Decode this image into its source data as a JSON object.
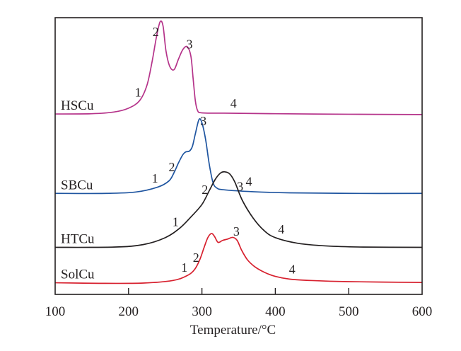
{
  "chart_data": {
    "type": "line",
    "title": "",
    "xlabel": "Temperature/°C",
    "ylabel": "",
    "xlim": [
      100,
      600
    ],
    "ylim": [
      0,
      100
    ],
    "xticks": [
      "100",
      "200",
      "300",
      "400",
      "500",
      "600"
    ],
    "xtick_values": [
      100,
      200,
      300,
      400,
      500,
      600
    ],
    "grid": false,
    "legend": "inline labels at left of each curve",
    "y_units": "arbitrary (curves vertically offset)",
    "series": [
      {
        "name": "HSCu",
        "color": "#b5338a",
        "x": [
          100,
          150,
          180,
          200,
          215,
          225,
          232,
          238,
          243,
          247,
          251,
          256,
          262,
          268,
          274,
          280,
          285,
          288,
          291,
          294,
          300,
          330,
          400,
          500,
          600
        ],
        "y": [
          65.2,
          65.3,
          65.9,
          67.3,
          70.0,
          75.5,
          84.0,
          93.0,
          98.5,
          97.0,
          88.0,
          82.5,
          81.2,
          85.0,
          88.5,
          89.5,
          86.0,
          78.0,
          70.0,
          66.5,
          65.6,
          65.5,
          65.3,
          65.1,
          65.0
        ],
        "peak_labels": [
          {
            "text": "1",
            "x": 213
          },
          {
            "text": "2",
            "x": 237
          },
          {
            "text": "3",
            "x": 283
          },
          {
            "text": "4",
            "x": 343
          }
        ]
      },
      {
        "name": "SBCu",
        "color": "#1f55a0",
        "x": [
          100,
          170,
          210,
          240,
          255,
          262,
          268,
          274,
          278,
          283,
          287,
          291,
          296,
          300,
          305,
          310,
          315,
          320,
          330,
          370,
          420,
          500,
          600
        ],
        "y": [
          36.5,
          36.5,
          37.0,
          38.8,
          41.0,
          44.0,
          47.5,
          50.5,
          51.5,
          51.8,
          53.5,
          58.0,
          63.2,
          62.0,
          56.0,
          47.0,
          40.5,
          38.5,
          37.8,
          37.1,
          36.7,
          36.5,
          36.5
        ],
        "peak_labels": [
          {
            "text": "1",
            "x": 236
          },
          {
            "text": "2",
            "x": 259
          },
          {
            "text": "3",
            "x": 302
          },
          {
            "text": "4",
            "x": 364
          }
        ]
      },
      {
        "name": "HTCu",
        "color": "#231f20",
        "x": [
          100,
          180,
          220,
          250,
          270,
          285,
          300,
          310,
          318,
          325,
          331,
          338,
          345,
          355,
          370,
          385,
          400,
          430,
          470,
          520,
          600
        ],
        "y": [
          17.0,
          17.1,
          18.0,
          20.5,
          24.0,
          28.0,
          32.5,
          37.5,
          41.5,
          43.8,
          44.3,
          43.5,
          40.5,
          34.0,
          27.5,
          23.0,
          20.5,
          18.5,
          17.5,
          17.1,
          17.0
        ],
        "peak_labels": [
          {
            "text": "1",
            "x": 264
          },
          {
            "text": "2",
            "x": 304
          },
          {
            "text": "3",
            "x": 352
          },
          {
            "text": "4",
            "x": 408
          }
        ]
      },
      {
        "name": "SolCu",
        "color": "#d7202e",
        "x": [
          100,
          160,
          220,
          260,
          280,
          290,
          297,
          303,
          308,
          313,
          317,
          322,
          328,
          335,
          342,
          348,
          354,
          362,
          372,
          385,
          400,
          420,
          450,
          500,
          600
        ],
        "y": [
          4.2,
          4.0,
          4.1,
          5.0,
          6.8,
          9.0,
          12.5,
          17.0,
          20.5,
          22.0,
          21.0,
          18.8,
          19.5,
          20.0,
          20.6,
          19.5,
          16.0,
          12.5,
          10.0,
          8.0,
          6.5,
          5.5,
          5.0,
          4.6,
          4.3
        ],
        "peak_labels": [
          {
            "text": "1",
            "x": 276
          },
          {
            "text": "2",
            "x": 292
          },
          {
            "text": "3",
            "x": 347
          },
          {
            "text": "4",
            "x": 423
          }
        ]
      }
    ]
  }
}
